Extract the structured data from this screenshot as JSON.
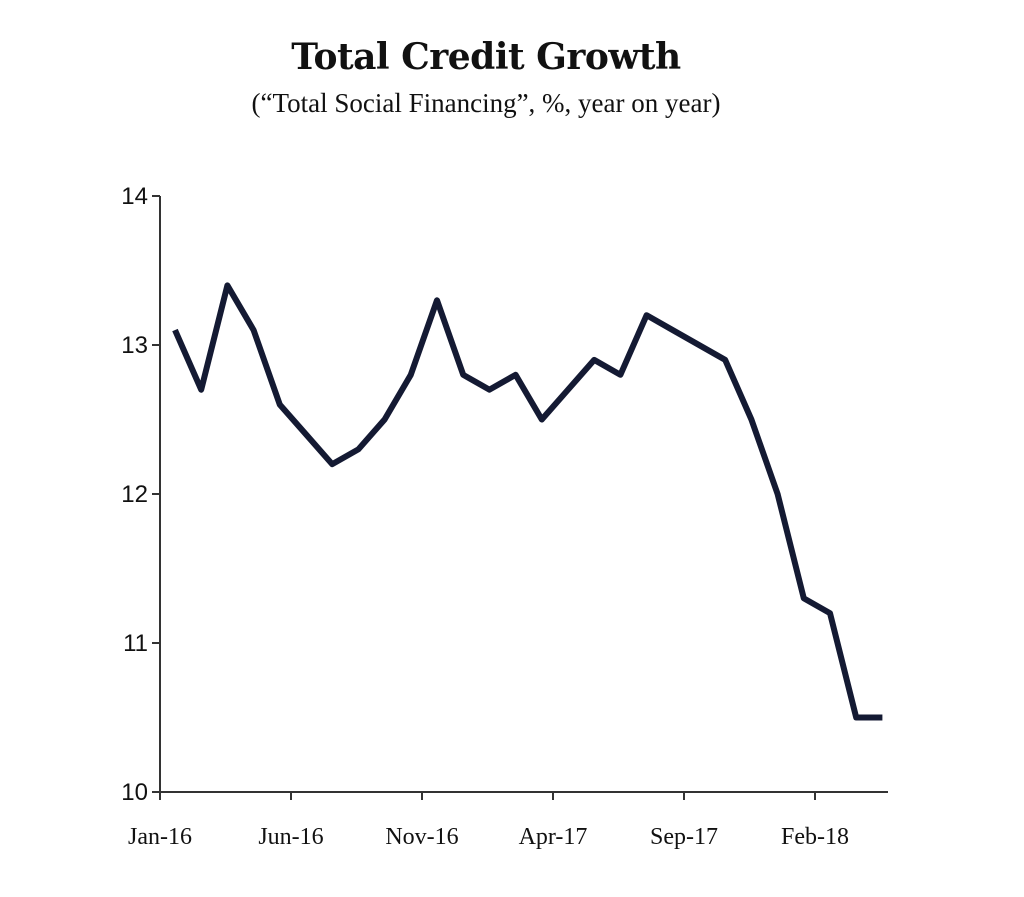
{
  "chart_data": {
    "type": "line",
    "title": "Total Credit Growth",
    "subtitle": "(“Total Social Financing”, %, year on year)",
    "xlabel": "",
    "ylabel": "",
    "ylim": [
      10,
      14
    ],
    "yticks": [
      10,
      11,
      12,
      13,
      14
    ],
    "xtick_labels": [
      {
        "label": "Jan-16",
        "index": 0
      },
      {
        "label": "Jun-16",
        "index": 5
      },
      {
        "label": "Nov-16",
        "index": 10
      },
      {
        "label": "Apr-17",
        "index": 15
      },
      {
        "label": "Sep-17",
        "index": 20
      },
      {
        "label": "Feb-18",
        "index": 25
      }
    ],
    "grid": false,
    "line_color": "#141a33",
    "series": [
      {
        "name": "Total Social Financing growth",
        "values": [
          13.1,
          12.7,
          13.4,
          13.1,
          12.6,
          12.4,
          12.2,
          12.3,
          12.5,
          12.8,
          13.3,
          12.8,
          12.7,
          12.8,
          12.5,
          12.7,
          12.9,
          12.8,
          13.2,
          13.1,
          13.0,
          12.9,
          12.5,
          12.0,
          11.3,
          11.2,
          10.5,
          10.5
        ]
      }
    ]
  }
}
